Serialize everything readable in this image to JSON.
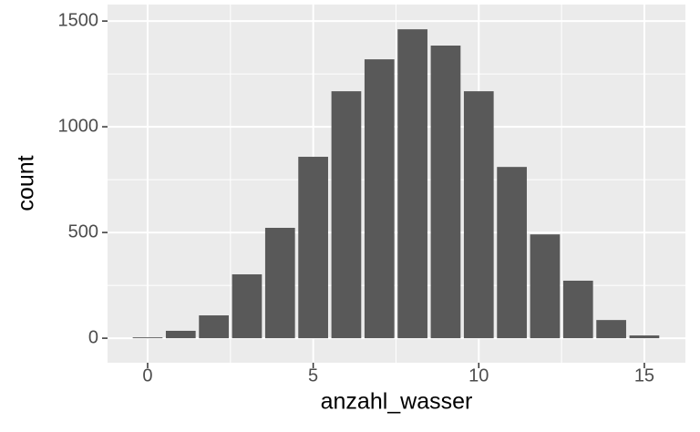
{
  "chart_data": {
    "type": "bar",
    "x_label": "anzahl_wasser",
    "y_label": "count",
    "x": [
      0,
      1,
      2,
      3,
      4,
      5,
      6,
      7,
      8,
      9,
      10,
      11,
      12,
      13,
      14,
      15
    ],
    "values": [
      4,
      35,
      108,
      302,
      522,
      858,
      1168,
      1319,
      1461,
      1384,
      1168,
      810,
      491,
      272,
      86,
      13
    ],
    "color": "#595959",
    "xlim": [
      -1.21,
      16.24
    ],
    "xticks": [
      0,
      5,
      10,
      15
    ],
    "ylim": [
      -116,
      1578
    ],
    "yticks": [
      0,
      500,
      1000,
      1500
    ],
    "grid": true
  }
}
